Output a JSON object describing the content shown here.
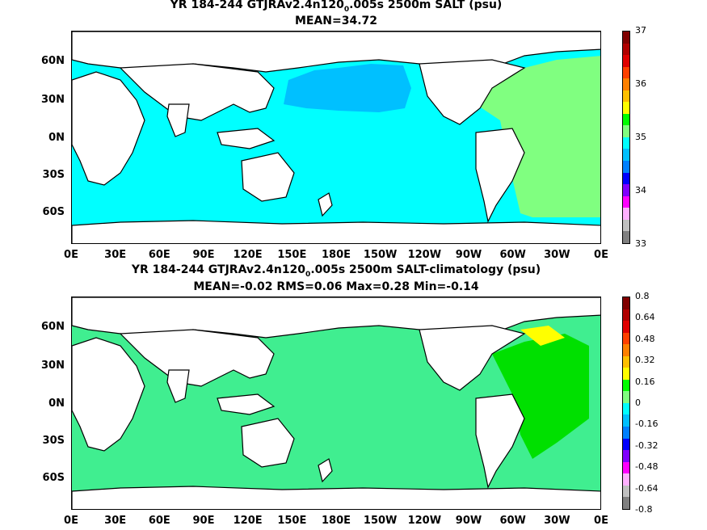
{
  "panels": [
    {
      "title_main": "YR 184-244 GTJRAv2.4n120",
      "title_sub": "0",
      "title_suffix": ".005s 2500m SALT (psu)",
      "stats": "MEAN=34.72",
      "colorbar": {
        "labels": [
          "37",
          "36",
          "35",
          "34",
          "33"
        ],
        "colors": [
          "#800000",
          "#b00000",
          "#e00000",
          "#ff4000",
          "#ff8000",
          "#ffc000",
          "#ffff00",
          "#00ff00",
          "#80ff80",
          "#00ffff",
          "#00c0ff",
          "#0080ff",
          "#0000ff",
          "#8000ff",
          "#ff00ff",
          "#ffb0ff",
          "#c0c0c0",
          "#808080"
        ]
      }
    },
    {
      "title_main": "YR 184-244 GTJRAv2.4n120",
      "title_sub": "0",
      "title_suffix": ".005s 2500m SALT-climatology (psu)",
      "stats": "MEAN=-0.02   RMS=0.06   Max=0.28   Min=-0.14",
      "colorbar": {
        "labels": [
          "0.8",
          "0.64",
          "0.48",
          "0.32",
          "0.16",
          "0",
          "-0.16",
          "-0.32",
          "-0.48",
          "-0.64",
          "-0.8"
        ],
        "colors": [
          "#800000",
          "#b00000",
          "#e00000",
          "#ff4000",
          "#ff8000",
          "#ffc000",
          "#ffff00",
          "#00ff00",
          "#80ff80",
          "#00ffff",
          "#00c0ff",
          "#0080ff",
          "#0000ff",
          "#8000ff",
          "#ff00ff",
          "#ffb0ff",
          "#c0c0c0",
          "#808080"
        ]
      }
    }
  ],
  "lat_labels": [
    "60N",
    "30N",
    "0N",
    "30S",
    "60S"
  ],
  "lon_labels": [
    "0E",
    "30E",
    "60E",
    "90E",
    "120E",
    "150E",
    "180E",
    "150W",
    "120W",
    "90W",
    "60W",
    "30W",
    "0E"
  ],
  "colors": {
    "ocean_top": "#00ffff",
    "north_pacific_top": "#00c0ff",
    "atlantic_top": "#80ff80",
    "ocean_bottom": "#40ee90",
    "land": "#ffffff",
    "coast": "#000000"
  }
}
